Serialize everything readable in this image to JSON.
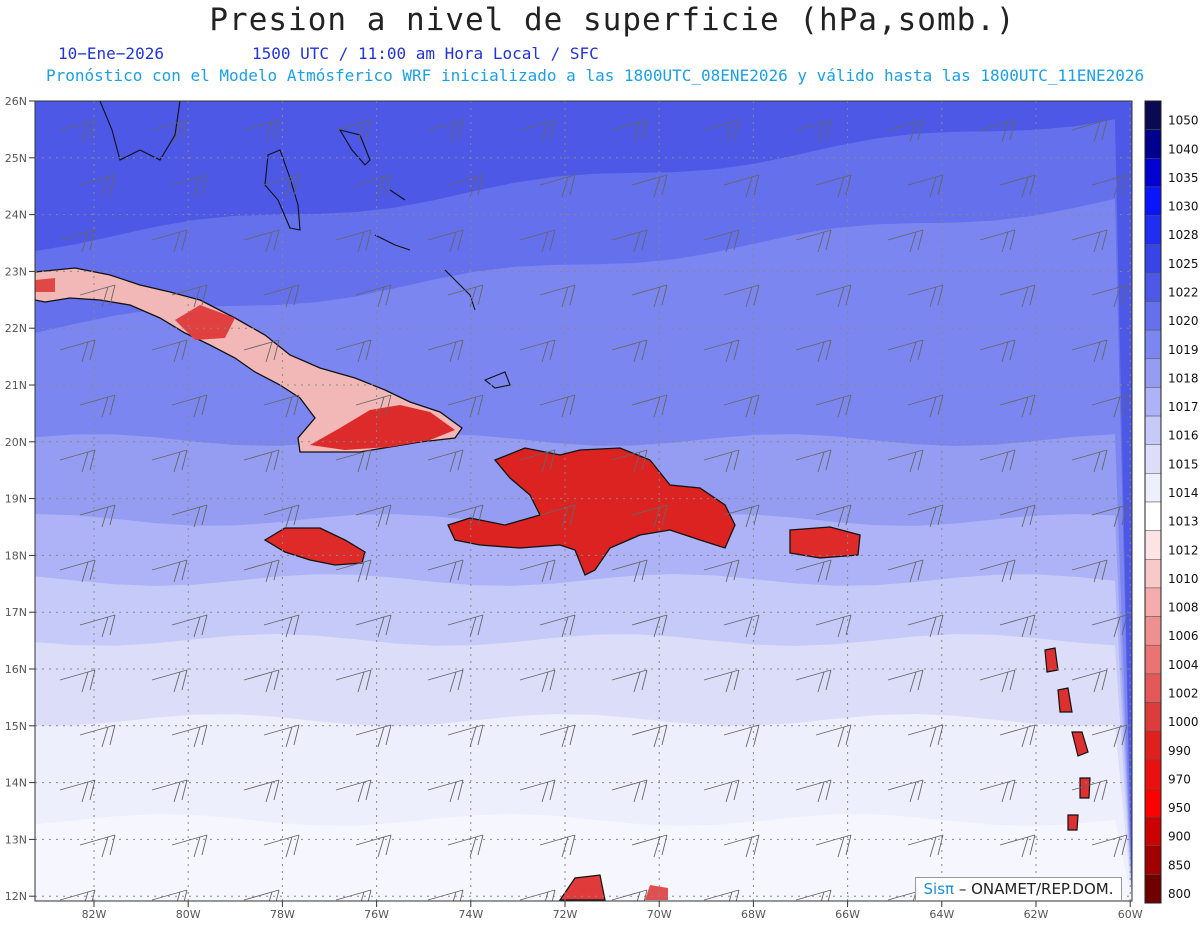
{
  "title": "Presion a nivel de superficie (hPa,somb.)",
  "date": "10−Ene−2026",
  "time_info": "1500 UTC / 11:00 am Hora Local / SFC",
  "model_info": "Pronóstico con el Modelo Atmósferico WRF inicializado a las 1800UTC_08ENE2026 y válido hasta las  1800UTC_11ENE2026",
  "credit": {
    "brand": "Sisπ",
    "text": " – ONAMET/REP.DOM."
  },
  "lat_labels": [
    "26N",
    "25N",
    "24N",
    "23N",
    "22N",
    "21N",
    "20N",
    "19N",
    "18N",
    "17N",
    "16N",
    "15N",
    "14N",
    "13N",
    "12N"
  ],
  "lon_labels": [
    "82W",
    "80W",
    "78W",
    "76W",
    "74W",
    "72W",
    "70W",
    "68W",
    "66W",
    "64W",
    "62W",
    "60W"
  ],
  "colorbar": {
    "levels": [
      "1050",
      "1040",
      "1035",
      "1030",
      "1028",
      "1025",
      "1022",
      "1020",
      "1019",
      "1018",
      "1017",
      "1016",
      "1015",
      "1014",
      "1013",
      "1012",
      "1010",
      "1008",
      "1006",
      "1004",
      "1002",
      "1000",
      "990",
      "970",
      "950",
      "900",
      "850",
      "800"
    ],
    "colors": [
      "#0a0a50",
      "#00008c",
      "#0000d0",
      "#0a14ff",
      "#1f2ef0",
      "#3844e6",
      "#4d58e6",
      "#6470ec",
      "#7c86f0",
      "#959df2",
      "#adb3f6",
      "#c6caf8",
      "#dcdef9",
      "#eeeffd",
      "#ffffff",
      "#fde4e4",
      "#f8c9c9",
      "#f4acac",
      "#ef9090",
      "#ea7474",
      "#e35858",
      "#dd3c3c",
      "#e01f1f",
      "#ea1010",
      "#ff0000",
      "#cc0000",
      "#a00000",
      "#700000"
    ]
  },
  "map": {
    "bands": [
      {
        "level": "1022",
        "color": "#4d58e6"
      },
      {
        "level": "1020",
        "color": "#6470ec"
      },
      {
        "level": "1019",
        "color": "#7c86f0"
      },
      {
        "level": "1018",
        "color": "#959df2"
      },
      {
        "level": "1017",
        "color": "#adb3f6"
      },
      {
        "level": "1016",
        "color": "#c6caf8"
      },
      {
        "level": "1015",
        "color": "#dcdef9"
      },
      {
        "level": "1014",
        "color": "#eeeffd"
      },
      {
        "level": "1013",
        "color": "#f6f6fe"
      }
    ],
    "land_high_color": "#f0b4b4",
    "land_low_color": "#dd2828"
  }
}
